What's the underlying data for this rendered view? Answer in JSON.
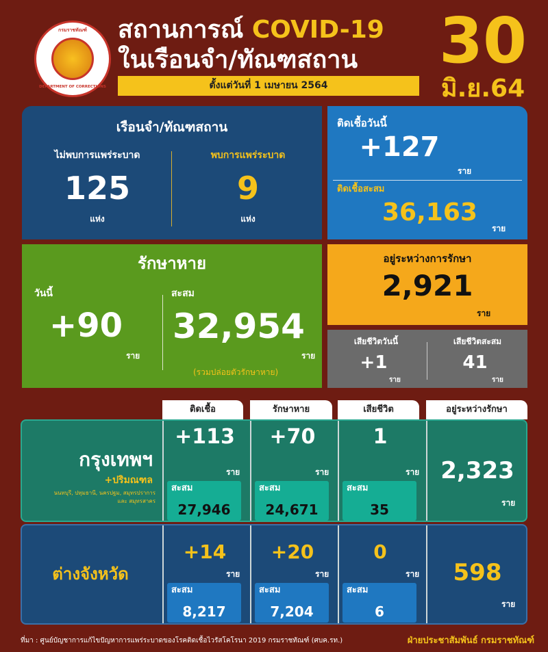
{
  "header": {
    "logo_text_top": "กรมราชทัณฑ์",
    "logo_text_bottom": "DEPARTMENT OF CORRECTIONS",
    "title_line1_th": "สถานการณ์",
    "title_line1_en": "COVID-19",
    "title_line2": "ในเรือนจำ/ทัณฑสถาน",
    "since": "ตั้งแต่วันที่ 1 เมษายน 2564",
    "day": "30",
    "month_year": "มิ.ย.64"
  },
  "prisons": {
    "title": "เรือนจำ/ทัณฑสถาน",
    "no_outbreak_label": "ไม่พบการแพร่ระบาด",
    "no_outbreak_value": "125",
    "outbreak_label": "พบการแพร่ระบาด",
    "outbreak_value": "9",
    "unit": "แห่ง"
  },
  "infections": {
    "today_label": "ติดเชื้อวันนี้",
    "today_value": "+127",
    "cum_label": "ติดเชื้อสะสม",
    "cum_value": "36,163",
    "unit": "ราย"
  },
  "recovered": {
    "title": "รักษาหาย",
    "today_label": "วันนี้",
    "today_value": "+90",
    "cum_label": "สะสม",
    "cum_value": "32,954",
    "note": "(รวมปล่อยตัวรักษาหาย)",
    "unit": "ราย"
  },
  "treating": {
    "label": "อยู่ระหว่างการรักษา",
    "value": "2,921",
    "unit": "ราย"
  },
  "deaths": {
    "today_label": "เสียชีวิตวันนี้",
    "today_value": "+1",
    "cum_label": "เสียชีวิตสะสม",
    "cum_value": "41",
    "unit": "ราย"
  },
  "table": {
    "headers": [
      "ติดเชื้อ",
      "รักษาหาย",
      "เสียชีวิต",
      "อยู่ระหว่างรักษา"
    ],
    "cum_label": "สะสม",
    "unit": "ราย",
    "rows": [
      {
        "name": "กรุงเทพฯ",
        "sub": "+ปริมณฑล",
        "areas": "นนทบุรี, ปทุมธานี, นครปฐม, สมุทรปราการ และ สมุทรสาคร",
        "infected": "+113",
        "infected_cum": "27,946",
        "recovered": "+70",
        "recovered_cum": "24,671",
        "deaths": "1",
        "deaths_cum": "35",
        "treating": "2,323"
      },
      {
        "name": "ต่างจังหวัด",
        "infected": "+14",
        "infected_cum": "8,217",
        "recovered": "+20",
        "recovered_cum": "7,204",
        "deaths": "0",
        "deaths_cum": "6",
        "treating": "598"
      }
    ]
  },
  "footer": {
    "source": "ที่มา : ศูนย์บัญชาการแก้ไขปัญหาการแพร่ระบาดของโรคติดเชื้อไวรัสโคโรนา 2019 กรมราชทัณฑ์ (ศบค.รท.)",
    "credit": "ฝ่ายประชาสัมพันธ์ กรมราชทัณฑ์"
  },
  "colors": {
    "background": "#6e1c12",
    "yellow": "#f5c21b",
    "dark_blue": "#1c4a78",
    "blue": "#1f78c1",
    "green": "#5a9a1e",
    "orange": "#f5a81b",
    "gray": "#6b6b6b",
    "teal": "#1d7a66"
  }
}
